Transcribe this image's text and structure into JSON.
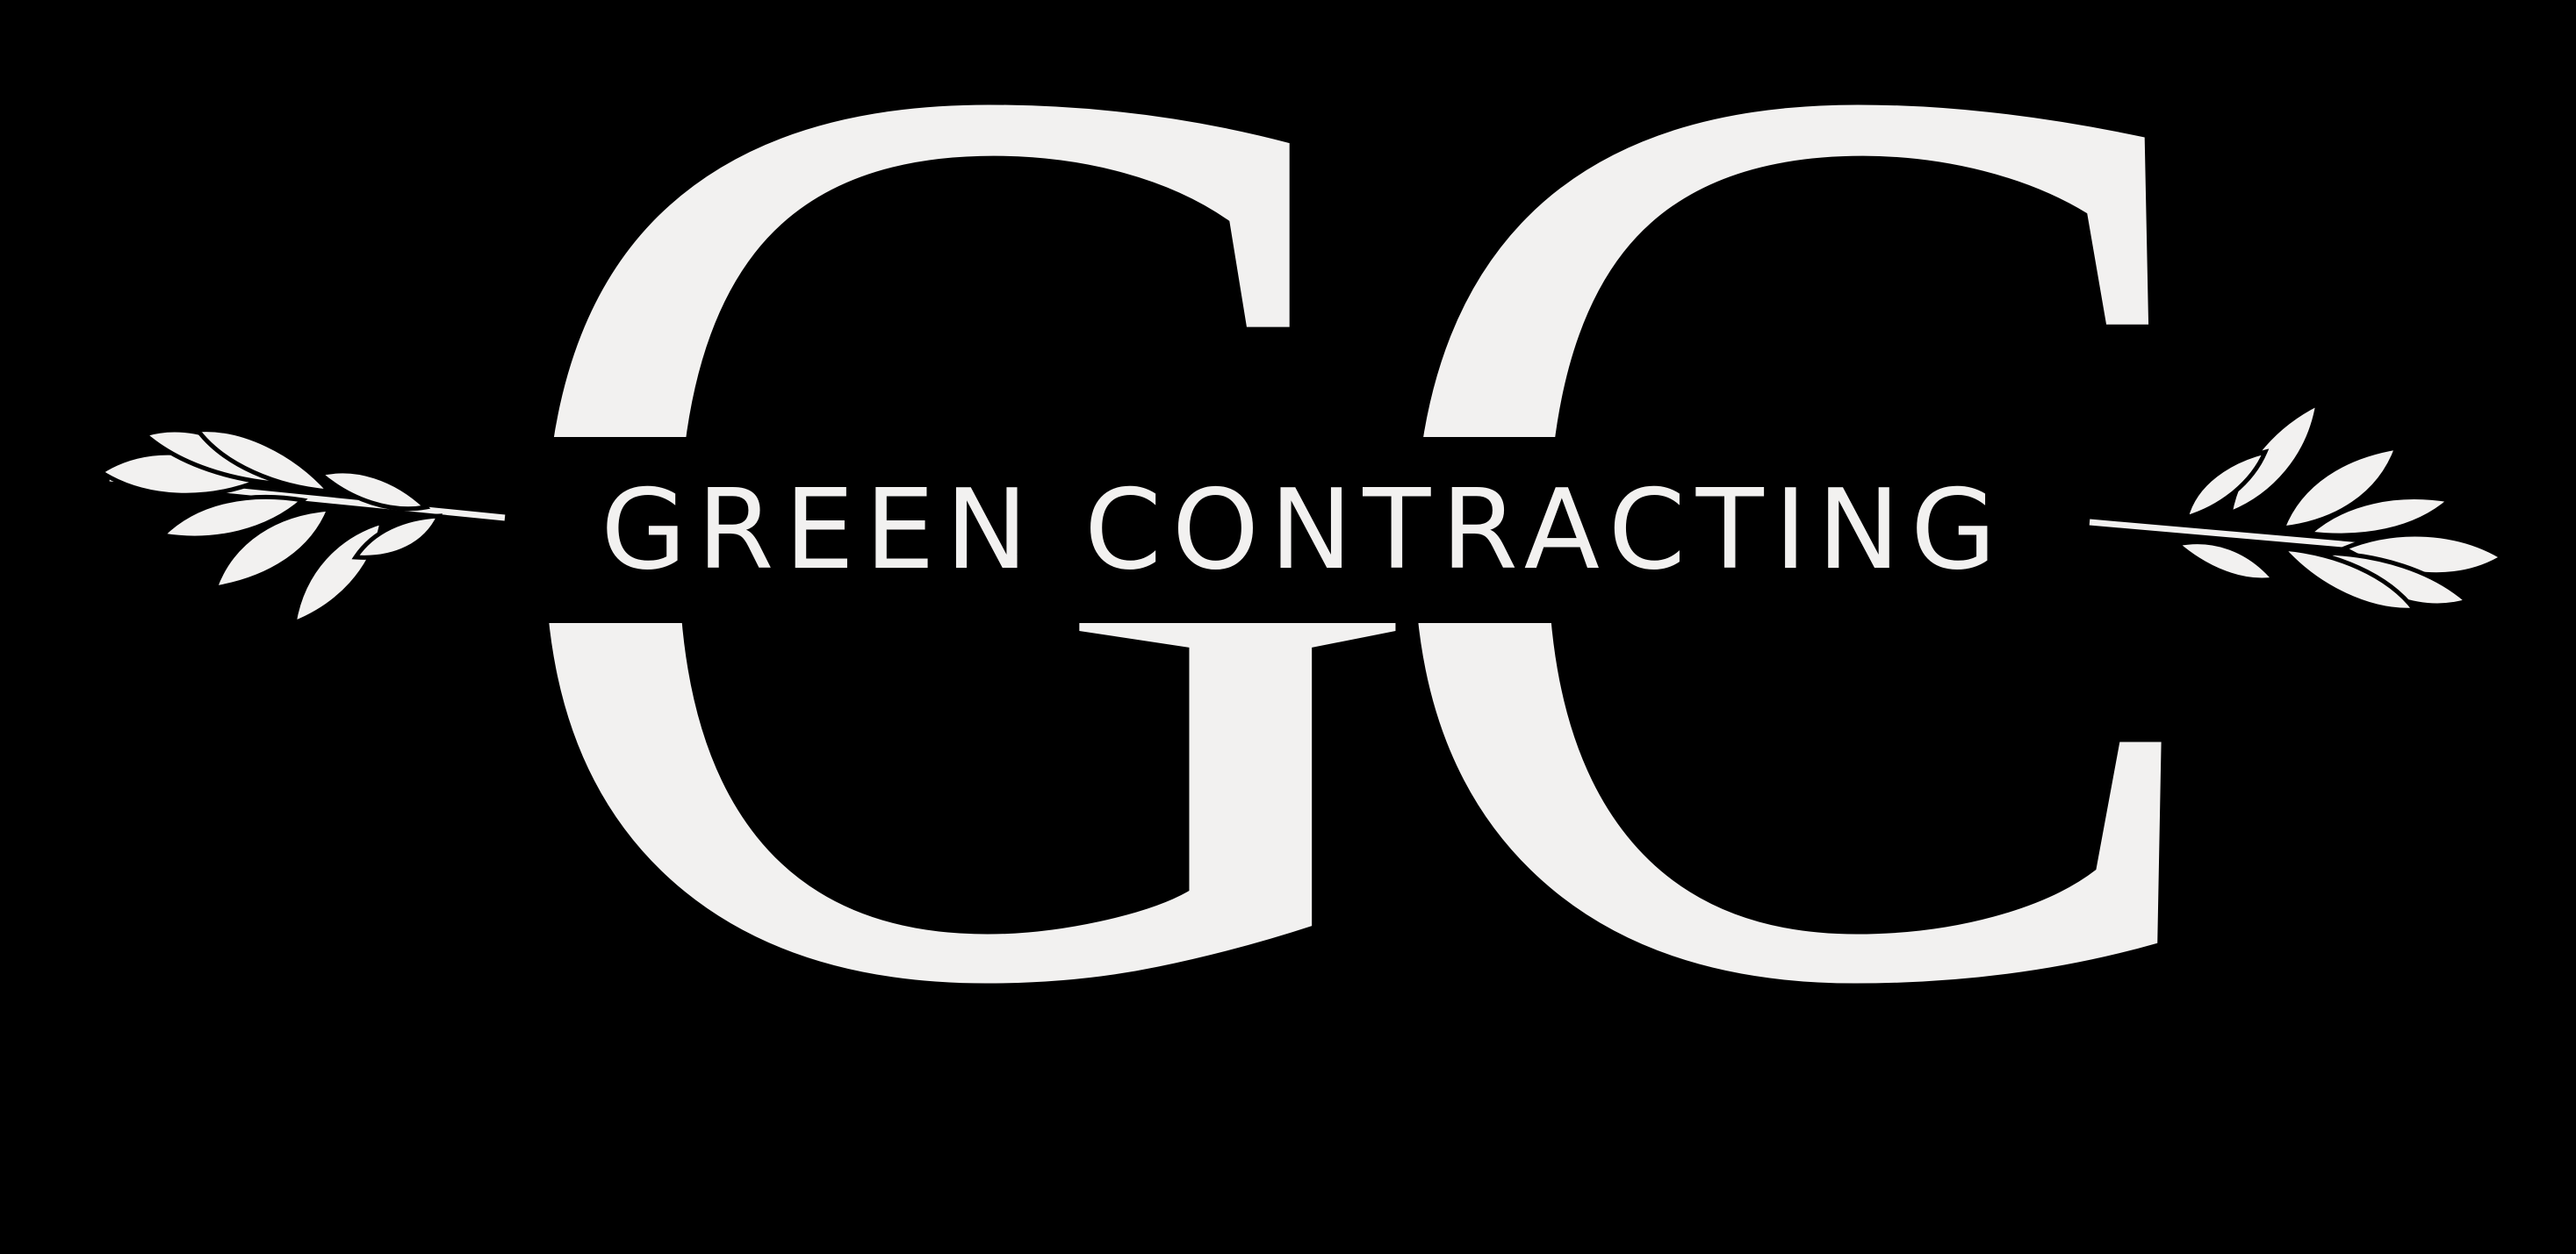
{
  "logo": {
    "brand_name": "GREEN CONTRACTING",
    "monogram": [
      "G",
      "C"
    ],
    "colors": {
      "background": "#000000",
      "foreground": "#f2f1f0"
    }
  },
  "icons": {
    "left": "leaf-branch-icon",
    "right": "leaf-branch-icon"
  }
}
